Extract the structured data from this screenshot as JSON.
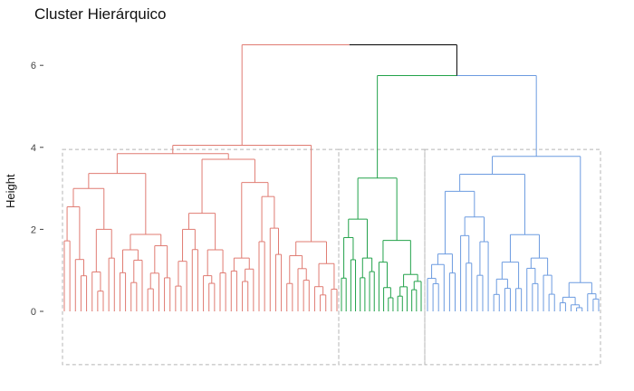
{
  "chart_data": {
    "type": "dendrogram",
    "title": "Cluster Hierárquico",
    "xlabel": "",
    "ylabel": "Height",
    "ylim": [
      -1.3,
      6.9
    ],
    "yticks": [
      0,
      2,
      4,
      6
    ],
    "root_height": 6.5,
    "clusters": [
      {
        "id": 1,
        "color": "#E07B72",
        "leaf_count": 50,
        "merge_height": 4.05,
        "sub_merges": [
          2.55,
          2.0,
          1.5,
          1.6,
          2.0,
          1.5,
          1.3,
          2.8,
          1.7
        ]
      },
      {
        "id": 2,
        "color": "#22A24A",
        "leaf_count": 18,
        "merge_height": 3.25,
        "sub_merges": [
          1.8,
          1.3,
          1.2,
          0.9
        ]
      },
      {
        "id": 3,
        "color": "#6C9BE0",
        "leaf_count": 32,
        "merge_height": 3.78,
        "sub_merges": [
          1.4,
          2.3,
          1.2,
          1.3,
          0.7
        ]
      }
    ],
    "upper_merges": [
      {
        "joins": [
          2,
          3
        ],
        "height": 5.75,
        "color": "#6C9BE0"
      },
      {
        "joins": [
          1,
          "2+3"
        ],
        "height": 6.5,
        "color": "#000000"
      }
    ],
    "cluster_box_bottom": -1.3,
    "cluster_box_top": 3.95,
    "grid": false,
    "legend": "none"
  }
}
